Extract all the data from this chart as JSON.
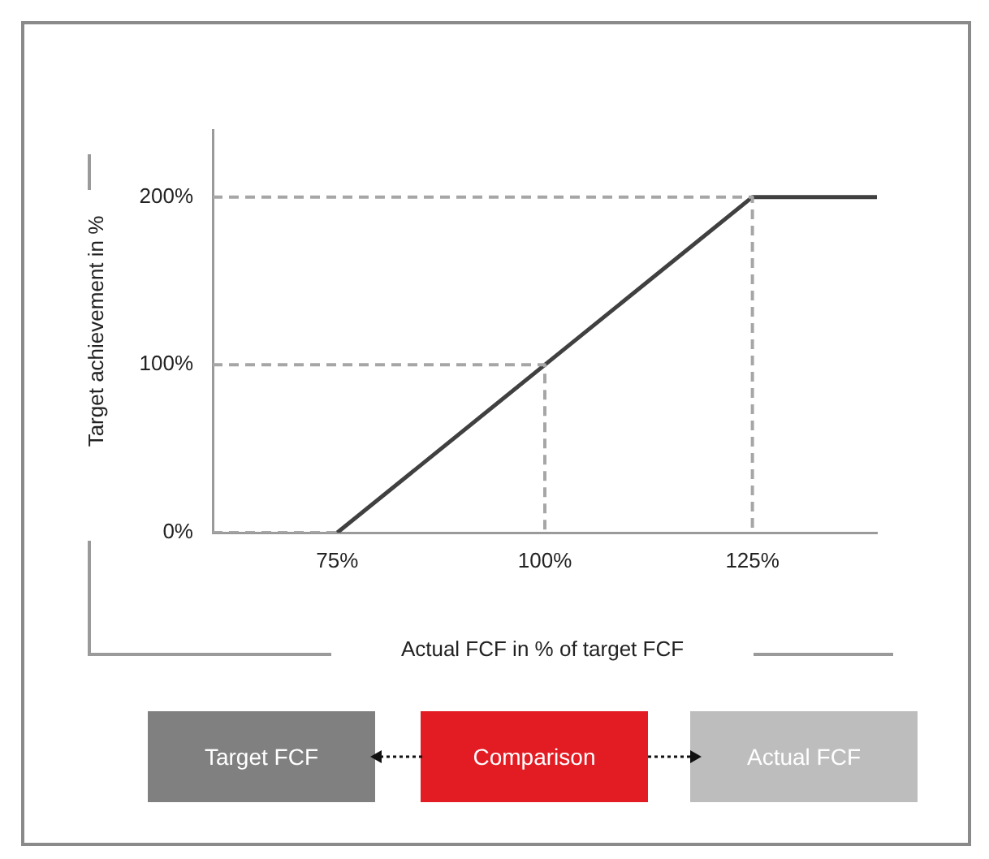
{
  "chart_data": {
    "type": "line",
    "xlabel": "Actual FCF in % of target FCF",
    "ylabel": "Target achievement in %",
    "xlim": [
      60,
      140
    ],
    "ylim": [
      0,
      240
    ],
    "xticks": [
      {
        "value": 75,
        "label": "75%"
      },
      {
        "value": 100,
        "label": "100%"
      },
      {
        "value": 125,
        "label": "125%"
      }
    ],
    "yticks": [
      {
        "value": 0,
        "label": "0%"
      },
      {
        "value": 100,
        "label": "100%"
      },
      {
        "value": 200,
        "label": "200%"
      }
    ],
    "grid": false,
    "legend": false,
    "marker": "none",
    "series": [
      {
        "color": "#a6a6a6",
        "line_style": "dashed",
        "x": [
          60,
          75
        ],
        "values": [
          0,
          0
        ]
      },
      {
        "color": "#a6a6a6",
        "line_style": "dashed",
        "x": [
          60,
          100,
          100
        ],
        "values": [
          100,
          100,
          0
        ]
      },
      {
        "color": "#a6a6a6",
        "line_style": "dashed",
        "x": [
          60,
          125,
          125
        ],
        "values": [
          200,
          200,
          0
        ]
      },
      {
        "color": "#404040",
        "line_style": "solid",
        "x": [
          75,
          125,
          140
        ],
        "values": [
          0,
          200,
          200
        ]
      }
    ],
    "annotations": [
      "Target FCF",
      "Comparison",
      "Actual FCF"
    ]
  }
}
